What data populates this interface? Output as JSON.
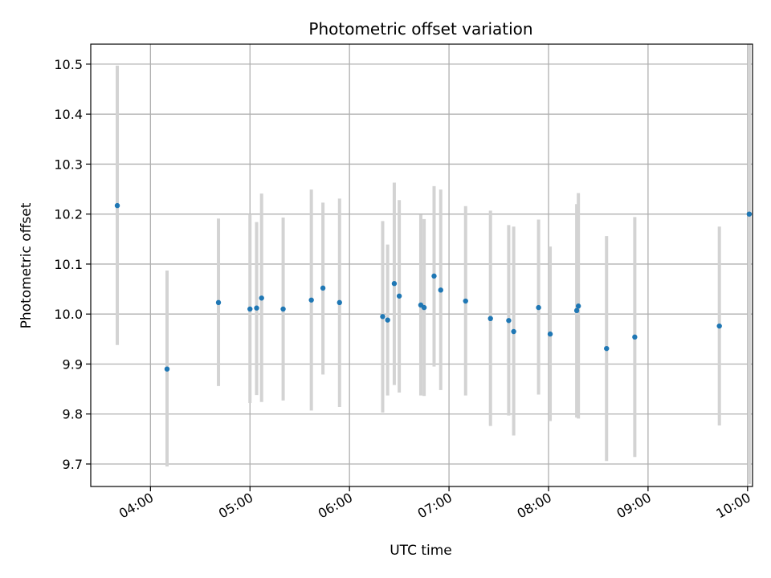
{
  "chart_data": {
    "type": "scatter",
    "title": "Photometric offset variation",
    "xlabel": "UTC time",
    "ylabel": "Photometric offset",
    "x_axis": "time",
    "xlim": [
      "03:24",
      "10:03"
    ],
    "ylim": [
      9.655,
      10.54
    ],
    "grid": true,
    "x_ticks": [
      "04:00",
      "05:00",
      "06:00",
      "07:00",
      "08:00",
      "09:00",
      "10:00"
    ],
    "y_ticks": [
      9.7,
      9.8,
      9.9,
      10.0,
      10.1,
      10.2,
      10.3,
      10.4,
      10.5
    ],
    "y_tick_labels": [
      "9.7",
      "9.8",
      "9.9",
      "10.0",
      "10.1",
      "10.2",
      "10.3",
      "10.4",
      "10.5"
    ],
    "colors": {
      "marker": "#1f77b4",
      "errorbar": "#d3d3d3",
      "grid": "#b0b0b0"
    },
    "points": [
      {
        "x": "03:40",
        "y": 10.217,
        "ylow": 9.938,
        "yhigh": 10.497
      },
      {
        "x": "04:10",
        "y": 9.89,
        "ylow": 9.695,
        "yhigh": 10.087
      },
      {
        "x": "04:41",
        "y": 10.023,
        "ylow": 9.856,
        "yhigh": 10.191
      },
      {
        "x": "05:00",
        "y": 10.01,
        "ylow": 9.822,
        "yhigh": 10.2
      },
      {
        "x": "05:04",
        "y": 10.012,
        "ylow": 9.838,
        "yhigh": 10.184
      },
      {
        "x": "05:07",
        "y": 10.032,
        "ylow": 9.824,
        "yhigh": 10.241
      },
      {
        "x": "05:20",
        "y": 10.01,
        "ylow": 9.827,
        "yhigh": 10.193
      },
      {
        "x": "05:37",
        "y": 10.028,
        "ylow": 9.807,
        "yhigh": 10.249
      },
      {
        "x": "05:44",
        "y": 10.052,
        "ylow": 9.879,
        "yhigh": 10.223
      },
      {
        "x": "05:54",
        "y": 10.023,
        "ylow": 9.814,
        "yhigh": 10.231
      },
      {
        "x": "06:20",
        "y": 9.995,
        "ylow": 9.803,
        "yhigh": 10.186
      },
      {
        "x": "06:23",
        "y": 9.988,
        "ylow": 9.837,
        "yhigh": 10.139
      },
      {
        "x": "06:27",
        "y": 10.061,
        "ylow": 9.858,
        "yhigh": 10.263
      },
      {
        "x": "06:30",
        "y": 10.036,
        "ylow": 9.843,
        "yhigh": 10.228
      },
      {
        "x": "06:43",
        "y": 10.018,
        "ylow": 9.837,
        "yhigh": 10.199
      },
      {
        "x": "06:45",
        "y": 10.013,
        "ylow": 9.836,
        "yhigh": 10.19
      },
      {
        "x": "06:51",
        "y": 10.076,
        "ylow": 9.895,
        "yhigh": 10.256
      },
      {
        "x": "06:55",
        "y": 10.048,
        "ylow": 9.848,
        "yhigh": 10.249
      },
      {
        "x": "07:10",
        "y": 10.026,
        "ylow": 9.837,
        "yhigh": 10.216
      },
      {
        "x": "07:25",
        "y": 9.991,
        "ylow": 9.776,
        "yhigh": 10.207
      },
      {
        "x": "07:36",
        "y": 9.987,
        "ylow": 9.797,
        "yhigh": 10.178
      },
      {
        "x": "07:39",
        "y": 9.965,
        "ylow": 9.757,
        "yhigh": 10.175
      },
      {
        "x": "07:54",
        "y": 10.013,
        "ylow": 9.839,
        "yhigh": 10.189
      },
      {
        "x": "08:01",
        "y": 9.96,
        "ylow": 9.786,
        "yhigh": 10.135
      },
      {
        "x": "08:17",
        "y": 10.007,
        "ylow": 9.793,
        "yhigh": 10.22
      },
      {
        "x": "08:18",
        "y": 10.016,
        "ylow": 9.791,
        "yhigh": 10.242
      },
      {
        "x": "08:35",
        "y": 9.931,
        "ylow": 9.706,
        "yhigh": 10.156
      },
      {
        "x": "08:52",
        "y": 9.954,
        "ylow": 9.714,
        "yhigh": 10.194
      },
      {
        "x": "09:43",
        "y": 9.976,
        "ylow": 9.777,
        "yhigh": 10.175
      },
      {
        "x": "10:01",
        "y": 10.2,
        "ylow": 9.66,
        "yhigh": 10.54
      }
    ]
  }
}
